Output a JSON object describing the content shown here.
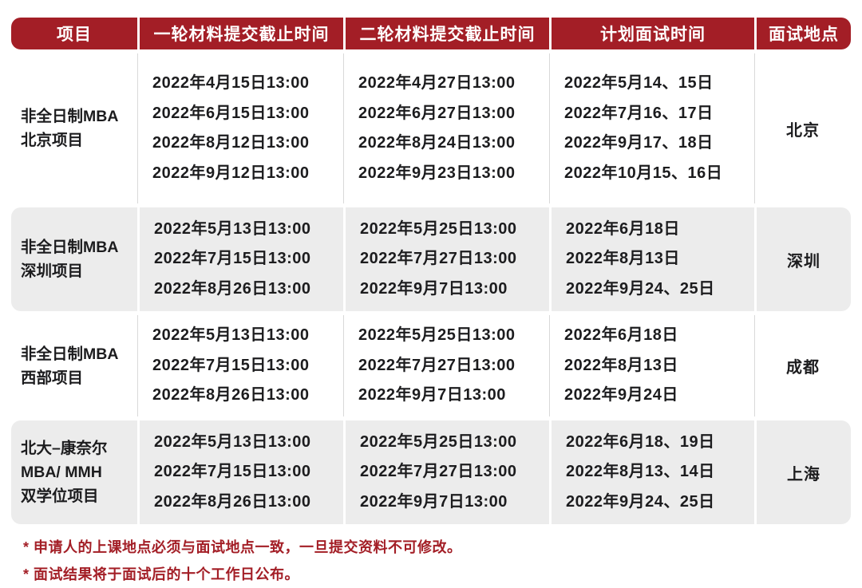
{
  "colors": {
    "header_red": "#a31e26",
    "row_gray": "#ececec",
    "divider_gray": "#d9d9d9",
    "body_text": "#1c1c1e",
    "footnote_red": "#a31e26"
  },
  "table": {
    "headers": [
      "项目",
      "一轮材料提交截止时间",
      "二轮材料提交截止时间",
      "计划面试时间",
      "面试地点"
    ],
    "rows": [
      {
        "program_lines": [
          "非全日制MBA",
          "北京项目"
        ],
        "round1_deadlines": [
          "2022年4月15日13:00",
          "2022年6月15日13:00",
          "2022年8月12日13:00",
          "2022年9月12日13:00"
        ],
        "round2_deadlines": [
          "2022年4月27日13:00",
          "2022年6月27日13:00",
          "2022年8月24日13:00",
          "2022年9月23日13:00"
        ],
        "interview_dates": [
          "2022年5月14、15日",
          "2022年7月16、17日",
          "2022年9月17、18日",
          "2022年10月15、16日"
        ],
        "location": "北京"
      },
      {
        "program_lines": [
          "非全日制MBA",
          "深圳项目"
        ],
        "round1_deadlines": [
          "2022年5月13日13:00",
          "2022年7月15日13:00",
          "2022年8月26日13:00"
        ],
        "round2_deadlines": [
          "2022年5月25日13:00",
          "2022年7月27日13:00",
          "2022年9月7日13:00"
        ],
        "interview_dates": [
          "2022年6月18日",
          "2022年8月13日",
          "2022年9月24、25日"
        ],
        "location": "深圳"
      },
      {
        "program_lines": [
          "非全日制MBA",
          "西部项目"
        ],
        "round1_deadlines": [
          "2022年5月13日13:00",
          "2022年7月15日13:00",
          "2022年8月26日13:00"
        ],
        "round2_deadlines": [
          "2022年5月25日13:00",
          "2022年7月27日13:00",
          "2022年9月7日13:00"
        ],
        "interview_dates": [
          "2022年6月18日",
          "2022年8月13日",
          "2022年9月24日"
        ],
        "location": "成都"
      },
      {
        "program_lines": [
          "北大–康奈尔",
          "MBA/ MMH",
          "双学位项目"
        ],
        "round1_deadlines": [
          "2022年5月13日13:00",
          "2022年7月15日13:00",
          "2022年8月26日13:00"
        ],
        "round2_deadlines": [
          "2022年5月25日13:00",
          "2022年7月27日13:00",
          "2022年9月7日13:00"
        ],
        "interview_dates": [
          "2022年6月18、19日",
          "2022年8月13、14日",
          "2022年9月24、25日"
        ],
        "location": "上海"
      }
    ]
  },
  "footnotes": [
    "* 申请人的上课地点必须与面试地点一致，一旦提交资料不可修改。",
    "* 面试结果将于面试后的十个工作日公布。"
  ]
}
